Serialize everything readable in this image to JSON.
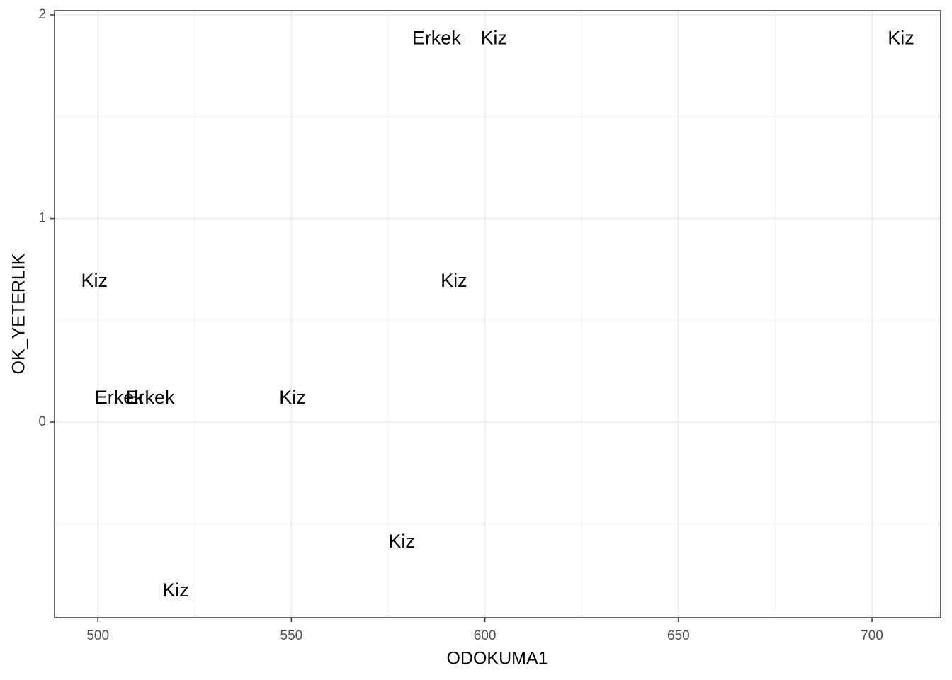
{
  "chart_data": {
    "type": "scatter",
    "x_label": "ODOKUMA1",
    "y_label": "OK_YETERLIK",
    "x": [
      587.5,
      602.3,
      707.5,
      499.1,
      592.0,
      505.5,
      513.5,
      550.3,
      578.5,
      520.1
    ],
    "values": [
      1.88,
      1.88,
      1.88,
      0.69,
      0.69,
      0.115,
      0.115,
      0.115,
      -0.59,
      -0.83
    ],
    "labels": [
      "Erkek",
      "Kiz",
      "Kiz",
      "Kiz",
      "Kiz",
      "Erkek",
      "Erkek",
      "Kiz",
      "Kiz",
      "Kiz"
    ],
    "color": "#000000",
    "xlim": [
      488.8,
      717.75
    ],
    "ylim": [
      -0.96,
      2.021
    ],
    "xticks": [
      500,
      550,
      600,
      650,
      700
    ],
    "yticks": [
      0,
      1,
      2
    ],
    "x_minor_grid": [
      525,
      575,
      625,
      675
    ],
    "y_minor_grid": [
      -0.5,
      0.5,
      1.5
    ],
    "grid": true
  }
}
